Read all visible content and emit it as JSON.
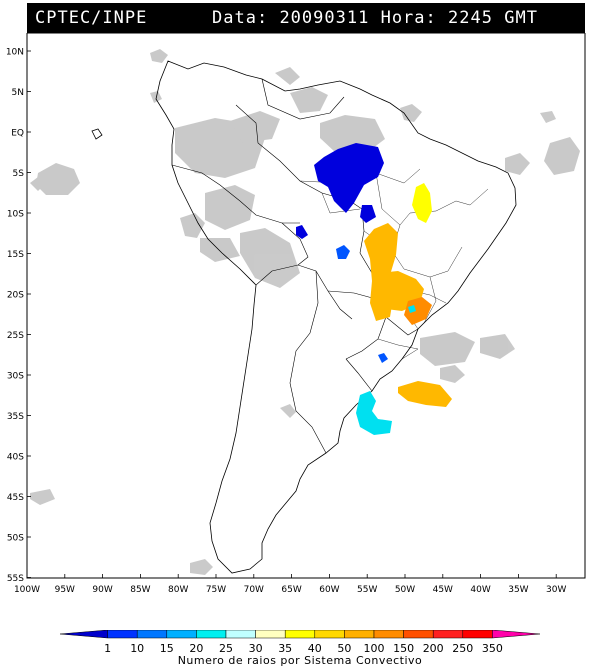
{
  "header": {
    "source": "CPTEC/INPE",
    "date_label": "Data:",
    "date_value": "20090311",
    "time_label": "Hora:",
    "time_value": "2245",
    "time_unit": "GMT"
  },
  "map": {
    "lat_labels": [
      "10N",
      "5N",
      "EQ",
      "5S",
      "10S",
      "15S",
      "20S",
      "25S",
      "30S",
      "35S",
      "40S",
      "45S",
      "50S",
      "55S"
    ],
    "lon_labels": [
      "100W",
      "95W",
      "90W",
      "85W",
      "80W",
      "75W",
      "70W",
      "65W",
      "60W",
      "55W",
      "50W",
      "45W",
      "40W",
      "35W",
      "30W"
    ],
    "extent": {
      "west": -100,
      "east": -28,
      "north": 14,
      "south": -56
    }
  },
  "legend": {
    "title": "Numero de raios por Sistema Convectivo",
    "values": [
      "1",
      "10",
      "15",
      "20",
      "25",
      "30",
      "35",
      "40",
      "50",
      "100",
      "150",
      "200",
      "250",
      "350"
    ],
    "colors": [
      "#0000cc",
      "#0033ff",
      "#0077ff",
      "#00b0ff",
      "#00f0f0",
      "#c0ffff",
      "#ffffc0",
      "#ffff00",
      "#ffd800",
      "#ffb000",
      "#ff8c00",
      "#ff5000",
      "#ff2020",
      "#ff0000",
      "#ff00aa"
    ]
  }
}
